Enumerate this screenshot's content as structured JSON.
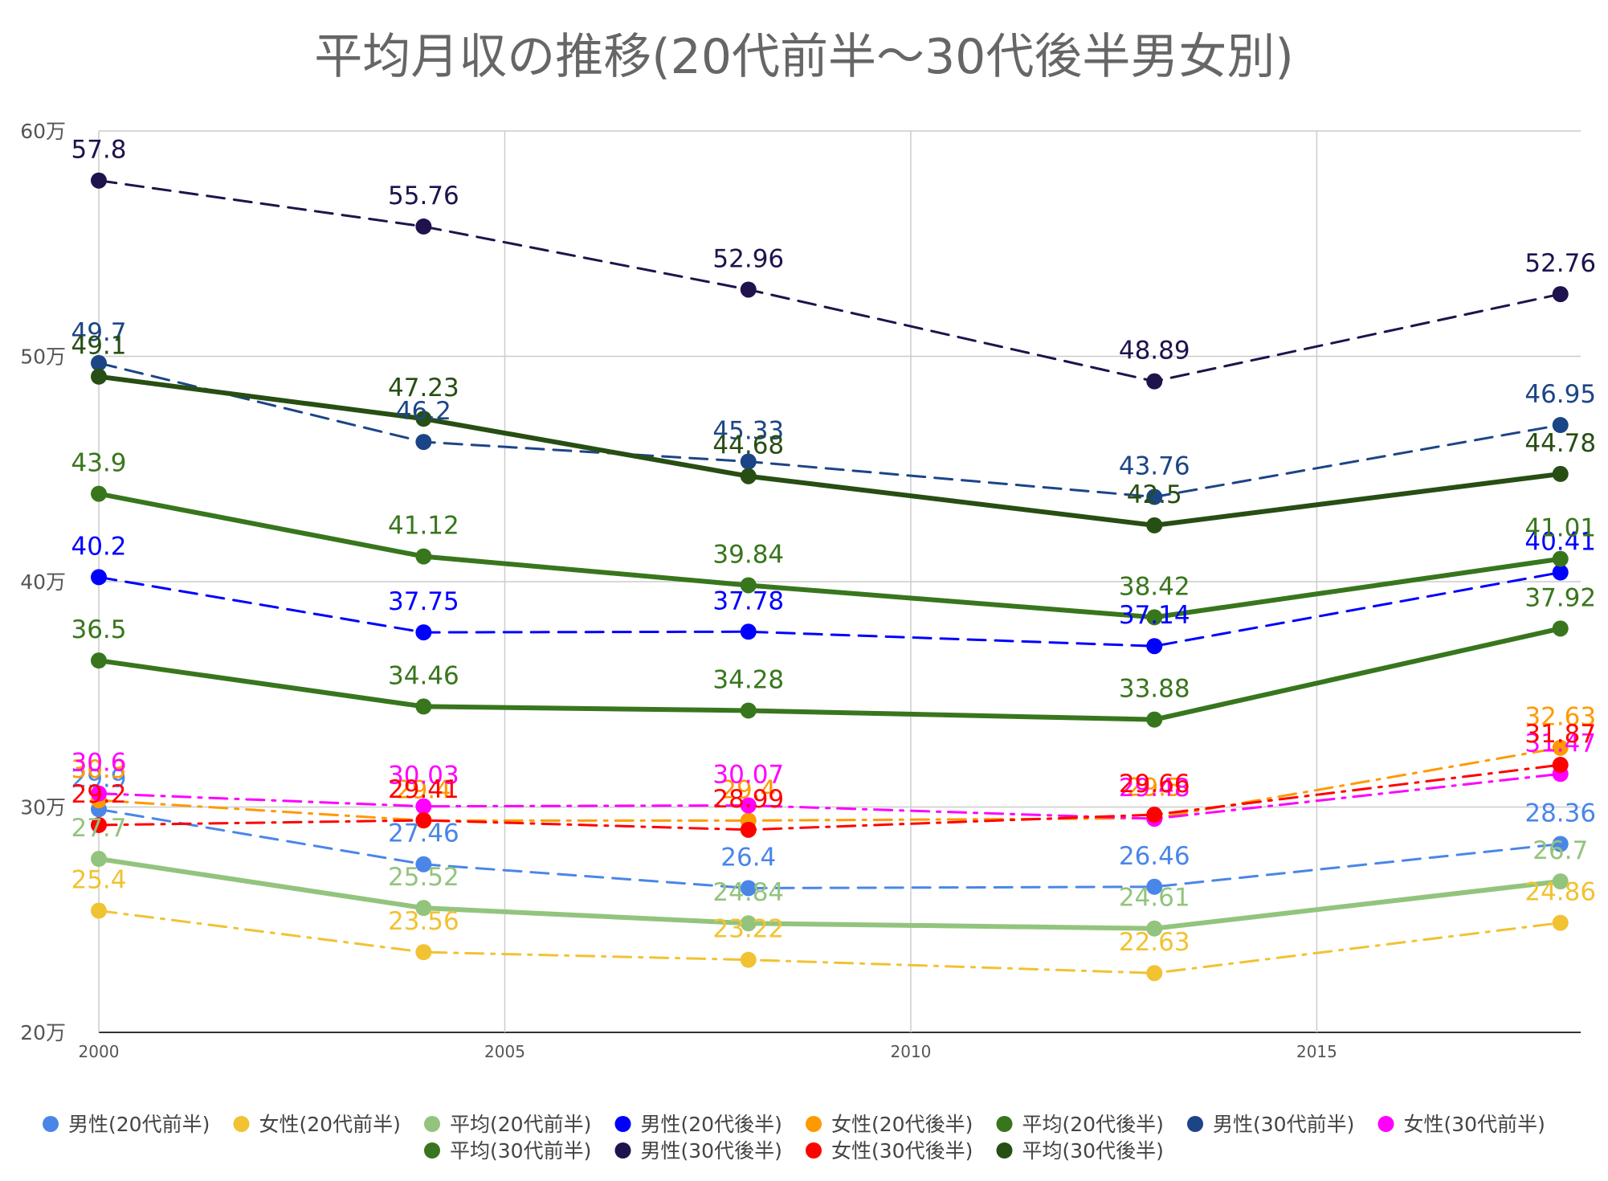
{
  "chart_data": {
    "type": "line",
    "title": "平均月収の推移(20代前半～30代後半男女別)",
    "xlabel": "",
    "ylabel": "",
    "x": [
      2000,
      2004,
      2008,
      2013,
      2018
    ],
    "xlim": [
      2000,
      2018.25
    ],
    "x_ticks": [
      2000,
      2005,
      2010,
      2015
    ],
    "ylim": [
      20,
      60
    ],
    "y_ticks": [
      20,
      30,
      40,
      50,
      60
    ],
    "y_tick_labels": [
      "20万",
      "30万",
      "40万",
      "50万",
      "60万"
    ],
    "grid": true,
    "legend_position": "bottom",
    "series": [
      {
        "name": "男性(20代前半)",
        "values": [
          29.9,
          27.46,
          26.4,
          26.46,
          28.36
        ],
        "color": "#4a86e8",
        "dash": "dash"
      },
      {
        "name": "女性(20代前半)",
        "values": [
          25.4,
          23.56,
          23.22,
          22.63,
          24.86
        ],
        "color": "#f1c232",
        "dash": "dashdot"
      },
      {
        "name": "平均(20代前半)",
        "values": [
          27.7,
          25.52,
          24.84,
          24.61,
          26.7
        ],
        "color": "#93c47d",
        "dash": "solid"
      },
      {
        "name": "男性(20代後半)",
        "values": [
          40.2,
          37.75,
          37.78,
          37.14,
          40.41
        ],
        "color": "#0000ff",
        "dash": "dash"
      },
      {
        "name": "女性(20代後半)",
        "values": [
          30.3,
          29.4,
          29.4,
          29.5,
          32.63
        ],
        "color": "#ff9900",
        "dash": "dashdot"
      },
      {
        "name": "平均(20代後半)",
        "values": [
          36.5,
          34.46,
          34.28,
          33.88,
          37.92
        ],
        "color": "#38761d",
        "dash": "solid"
      },
      {
        "name": "男性(30代前半)",
        "values": [
          49.7,
          46.2,
          45.33,
          43.76,
          46.95
        ],
        "color": "#1c4587",
        "dash": "dash"
      },
      {
        "name": "女性(30代前半)",
        "values": [
          30.6,
          30.03,
          30.07,
          29.48,
          31.47
        ],
        "color": "#ff00ff",
        "dash": "dashdot"
      },
      {
        "name": "平均(30代前半)",
        "values": [
          43.9,
          41.12,
          39.84,
          38.42,
          41.01
        ],
        "color": "#38761d",
        "dash": "solid"
      },
      {
        "name": "男性(30代後半)",
        "values": [
          57.8,
          55.76,
          52.96,
          48.89,
          52.76
        ],
        "color": "#20124d",
        "dash": "dash"
      },
      {
        "name": "女性(30代後半)",
        "values": [
          29.2,
          29.41,
          28.99,
          29.66,
          31.87
        ],
        "color": "#ff0000",
        "dash": "dashdot"
      },
      {
        "name": "平均(30代後半)",
        "values": [
          49.1,
          47.23,
          44.68,
          42.5,
          44.78
        ],
        "color": "#274e13",
        "dash": "solid"
      }
    ]
  }
}
